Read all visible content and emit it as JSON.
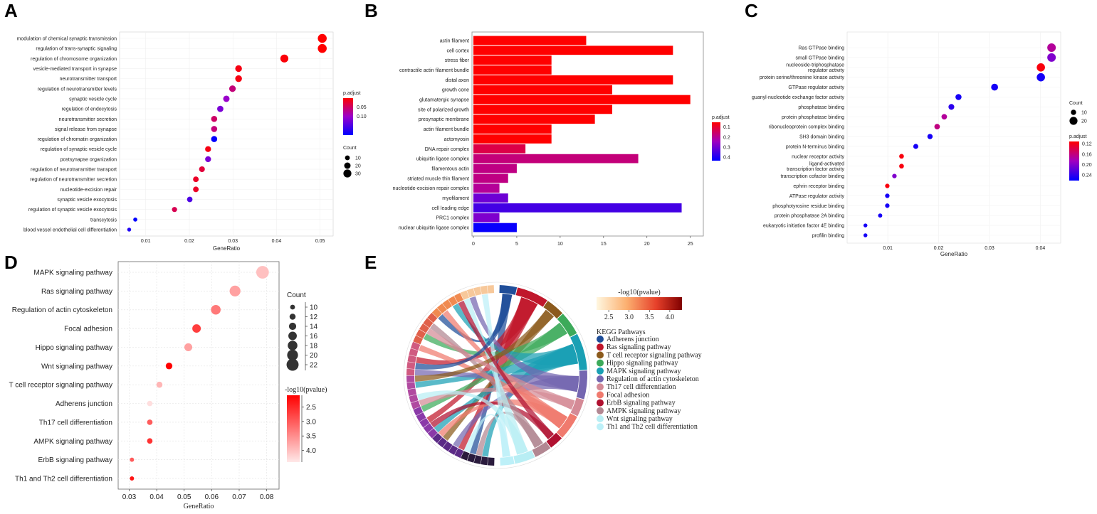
{
  "panels": [
    {
      "letter": "A",
      "type": "dot",
      "xlabel": "GeneRatio",
      "xticks": [
        0.01,
        0.02,
        0.03,
        0.04,
        0.05
      ],
      "xtick_labels": [
        "0.01",
        "0.02",
        "0.03",
        "0.04",
        "0.05"
      ],
      "xlim": [
        0.004,
        0.053
      ],
      "categories": [
        "modulation of chemical synaptic transmission",
        "regulation of trans-synaptic signaling",
        "regulation of chromosome organization",
        "vesicle-mediated transport in synapse",
        "neurotransmitter transport",
        "regulation of neurotransmitter levels",
        "synaptic vesicle cycle",
        "regulation of endocytosis",
        "neurotransmitter secretion",
        "signal release from synapse",
        "regulation of chromatin organization",
        "regulation of synaptic vesicle cycle",
        "postsynapse organization",
        "regulation of neurotransmitter transport",
        "regulation of neurotransmitter secretion",
        "nucleotide-excision repair",
        "synaptic vesicle exocytosis",
        "regulation of synaptic vesicle exocytosis",
        "transcytosis",
        "blood vessel endothelial cell differentiation"
      ],
      "x": [
        0.0505,
        0.0505,
        0.0418,
        0.0313,
        0.0313,
        0.0299,
        0.0285,
        0.0271,
        0.0257,
        0.0257,
        0.0257,
        0.0243,
        0.0243,
        0.0229,
        0.0215,
        0.0215,
        0.0201,
        0.0166,
        0.0076,
        0.0062
      ],
      "counts": [
        36,
        36,
        30,
        22,
        22,
        21,
        20,
        19,
        18,
        18,
        18,
        17,
        17,
        16,
        15,
        15,
        14,
        12,
        5,
        4
      ],
      "padj": [
        0.001,
        0.001,
        0.005,
        0.01,
        0.01,
        0.06,
        0.1,
        0.12,
        0.05,
        0.06,
        0.2,
        0.01,
        0.12,
        0.03,
        0.02,
        0.02,
        0.15,
        0.04,
        0.2,
        0.18
      ],
      "legend_color_title": "p.adjust",
      "legend_color_ticks": [
        0.05,
        0.1
      ],
      "legend_color_tick_labels": [
        "0.05",
        "0.10"
      ],
      "legend_color_range": [
        0.001,
        0.2
      ],
      "legend_size_title": "Count",
      "legend_size_values": [
        10,
        20,
        30
      ],
      "legend_size_labels": [
        "10",
        "20",
        "30"
      ],
      "color_high": "#ff0000",
      "color_low": "#0000ff",
      "color_mid": "#9900cc"
    },
    {
      "letter": "B",
      "type": "bar",
      "xticks": [
        0,
        5,
        10,
        15,
        20,
        25
      ],
      "xtick_labels": [
        "0",
        "5",
        "10",
        "15",
        "20",
        "25"
      ],
      "xlim": [
        0,
        26.5
      ],
      "categories": [
        "actin filament",
        "cell cortex",
        "stress fiber",
        "contractile actin filament bundle",
        "distal axon",
        "growth cone",
        "glutamatergic synapse",
        "site of polarized growth",
        "presynaptic membrane",
        "actin filament bundle",
        "actomyosin",
        "DNA repair complex",
        "ubiquitin ligase complex",
        "filamentous actin",
        "striated muscle thin filament",
        "nucleotide-excision repair complex",
        "myofilament",
        "cell leading edge",
        "PRC1 complex",
        "nuclear ubiquitin ligase complex"
      ],
      "values": [
        13,
        23,
        9,
        9,
        23,
        16,
        25,
        16,
        14,
        9,
        9,
        6,
        19,
        5,
        4,
        3,
        4,
        24,
        3,
        5
      ],
      "padj": [
        0.05,
        0.05,
        0.05,
        0.05,
        0.05,
        0.05,
        0.05,
        0.05,
        0.05,
        0.05,
        0.05,
        0.12,
        0.17,
        0.18,
        0.18,
        0.2,
        0.3,
        0.35,
        0.28,
        0.42
      ],
      "legend_color_title": "p.adjust",
      "legend_color_ticks": [
        0.1,
        0.2,
        0.3,
        0.4
      ],
      "legend_color_tick_labels": [
        "0.1",
        "0.2",
        "0.3",
        "0.4"
      ],
      "legend_color_range": [
        0.05,
        0.43
      ],
      "color_high": "#ff0000",
      "color_low": "#0000ff",
      "color_mid": "#a000c0"
    },
    {
      "letter": "C",
      "type": "dot",
      "xlabel": "GeneRatio",
      "xticks": [
        0.01,
        0.02,
        0.03,
        0.04
      ],
      "xtick_labels": [
        "0.01",
        "0.02",
        "0.03",
        "0.04"
      ],
      "xlim": [
        0.002,
        0.044
      ],
      "categories": [
        "Ras GTPase binding",
        "small GTPase binding",
        "nucleoside-triphosphatase regulator activity",
        "protein serine/threonine kinase activity",
        "GTPase regulator activity",
        "guanyl-nucleotide exchange factor activity",
        "phosphatase binding",
        "protein phosphatase binding",
        "ribonucleoprotein complex binding",
        "SH3 domain binding",
        "protein N-terminus binding",
        "nuclear receptor activity",
        "ligand-activated transcription factor activity",
        "transcription cofactor binding",
        "ephrin receptor binding",
        "ATPase regulator activity",
        "phosphotyrosine residue binding",
        "protein phosphatase 2A binding",
        "eukaryotic initiation factor 4E binding",
        "profilin binding"
      ],
      "label_lines": [
        [
          "Ras GTPase binding"
        ],
        [
          "small GTPase binding"
        ],
        [
          "nucleoside-triphosphatase",
          "regulator activity"
        ],
        [
          "protein serine/threonine kinase activity"
        ],
        [
          "GTPase regulator activity"
        ],
        [
          "guanyl-nucleotide exchange factor activity"
        ],
        [
          "phosphatase binding"
        ],
        [
          "protein phosphatase binding"
        ],
        [
          "ribonucleoprotein complex binding"
        ],
        [
          "SH3 domain binding"
        ],
        [
          "protein N-terminus binding"
        ],
        [
          "nuclear receptor activity"
        ],
        [
          "ligand-activated",
          "transcription factor activity"
        ],
        [
          "transcription cofactor binding"
        ],
        [
          "ephrin receptor binding"
        ],
        [
          "ATPase regulator activity"
        ],
        [
          "phosphotyrosine residue binding"
        ],
        [
          "protein phosphatase 2A binding"
        ],
        [
          "eukaryotic initiation factor 4E binding"
        ],
        [
          "profilin binding"
        ]
      ],
      "x": [
        0.0422,
        0.0422,
        0.0401,
        0.0401,
        0.031,
        0.0239,
        0.0225,
        0.0211,
        0.0197,
        0.0183,
        0.0155,
        0.0127,
        0.0127,
        0.0113,
        0.0099,
        0.0099,
        0.0099,
        0.0085,
        0.0056,
        0.0056
      ],
      "counts": [
        22,
        22,
        21,
        21,
        16,
        13,
        12,
        11,
        11,
        10,
        9,
        8,
        8,
        7,
        7,
        7,
        7,
        6,
        5,
        5
      ],
      "padj": [
        0.17,
        0.2,
        0.115,
        0.25,
        0.25,
        0.25,
        0.24,
        0.17,
        0.16,
        0.25,
        0.25,
        0.115,
        0.115,
        0.2,
        0.115,
        0.25,
        0.25,
        0.25,
        0.25,
        0.25
      ],
      "legend_color_title": "p.adjust",
      "legend_color_ticks": [
        0.12,
        0.16,
        0.2,
        0.24
      ],
      "legend_color_tick_labels": [
        "0.12",
        "0.16",
        "0.20",
        "0.24"
      ],
      "legend_color_range": [
        0.11,
        0.26
      ],
      "legend_size_title": "Count",
      "legend_size_values": [
        10,
        20
      ],
      "legend_size_labels": [
        "10",
        "20"
      ],
      "color_high": "#ff0000",
      "color_low": "#0000ff",
      "color_mid": "#a000c0"
    },
    {
      "letter": "D",
      "type": "dot",
      "xlabel": "GeneRatio",
      "xticks": [
        0.03,
        0.04,
        0.05,
        0.06,
        0.07,
        0.08
      ],
      "xtick_labels": [
        "0.03",
        "0.04",
        "0.05",
        "0.06",
        "0.07",
        "0.08"
      ],
      "xlim": [
        0.026,
        0.0845
      ],
      "categories": [
        "MAPK signaling pathway",
        "Ras signaling pathway",
        "Regulation of actin cytoskeleton",
        "Focal adhesion",
        "Hippo signaling pathway",
        "Wnt signaling pathway",
        "T cell receptor signaling pathway",
        "Adherens junction",
        "Th17 cell differentiation",
        "AMPK signaling pathway",
        "ErbB signaling pathway",
        "Th1 and Th2 cell differentiation"
      ],
      "x": [
        0.0785,
        0.0685,
        0.0615,
        0.0545,
        0.0515,
        0.0445,
        0.041,
        0.0375,
        0.0375,
        0.0375,
        0.031,
        0.031
      ],
      "counts": [
        23,
        20,
        18,
        16,
        15,
        13,
        12,
        11,
        11,
        11,
        9,
        9
      ],
      "logp": [
        4.0,
        3.7,
        3.3,
        2.7,
        3.7,
        2.1,
        3.9,
        4.3,
        3.0,
        2.6,
        3.0,
        2.3
      ],
      "legend_color_title": "-log10(pvalue)",
      "legend_color_ticks": [
        2.5,
        3.0,
        3.5,
        4.0
      ],
      "legend_color_tick_labels": [
        "2.5",
        "3.0",
        "3.5",
        "4.0"
      ],
      "legend_color_range": [
        2.1,
        4.4
      ],
      "legend_size_title": "Count",
      "legend_size_values": [
        10,
        12,
        14,
        16,
        18,
        20,
        22
      ],
      "legend_size_labels": [
        "10",
        "12",
        "14",
        "16",
        "18",
        "20",
        "22"
      ],
      "color_high": "#ff0000",
      "color_low": "#ffe8e8"
    },
    {
      "letter": "E",
      "type": "chord",
      "legend_color_title": "-log10(pvalue)",
      "legend_color_ticks": [
        2.5,
        3.0,
        3.5,
        4.0
      ],
      "legend_color_tick_labels": [
        "2.5",
        "3.0",
        "3.5",
        "4.0"
      ],
      "legend_color_range": [
        2.2,
        4.3
      ],
      "legend_title": "KEGG Pathways",
      "pathways": [
        "Adherens junction",
        "Ras signaling pathway",
        "T cell receptor signaling pathway",
        "Hippo signaling pathway",
        "MAPK signaling pathway",
        "Regulation of actin cytoskeleton",
        "Th17 cell differentiation",
        "Focal adhesion",
        "ErbB signaling pathway",
        "AMPK signaling pathway",
        "Wnt signaling pathway",
        "Th1 and Th2 cell differentiation"
      ],
      "pathway_colors": [
        "#1f4e99",
        "#c0172b",
        "#8b5a1c",
        "#3caa5a",
        "#1aa0b4",
        "#7466b0",
        "#d48a96",
        "#f07a6e",
        "#b01030",
        "#b28792",
        "#b8eef4",
        "#bdf0f8"
      ],
      "pathway_sizes": [
        11,
        20,
        12,
        15,
        23,
        18,
        11,
        16,
        9,
        11,
        13,
        9
      ]
    }
  ]
}
